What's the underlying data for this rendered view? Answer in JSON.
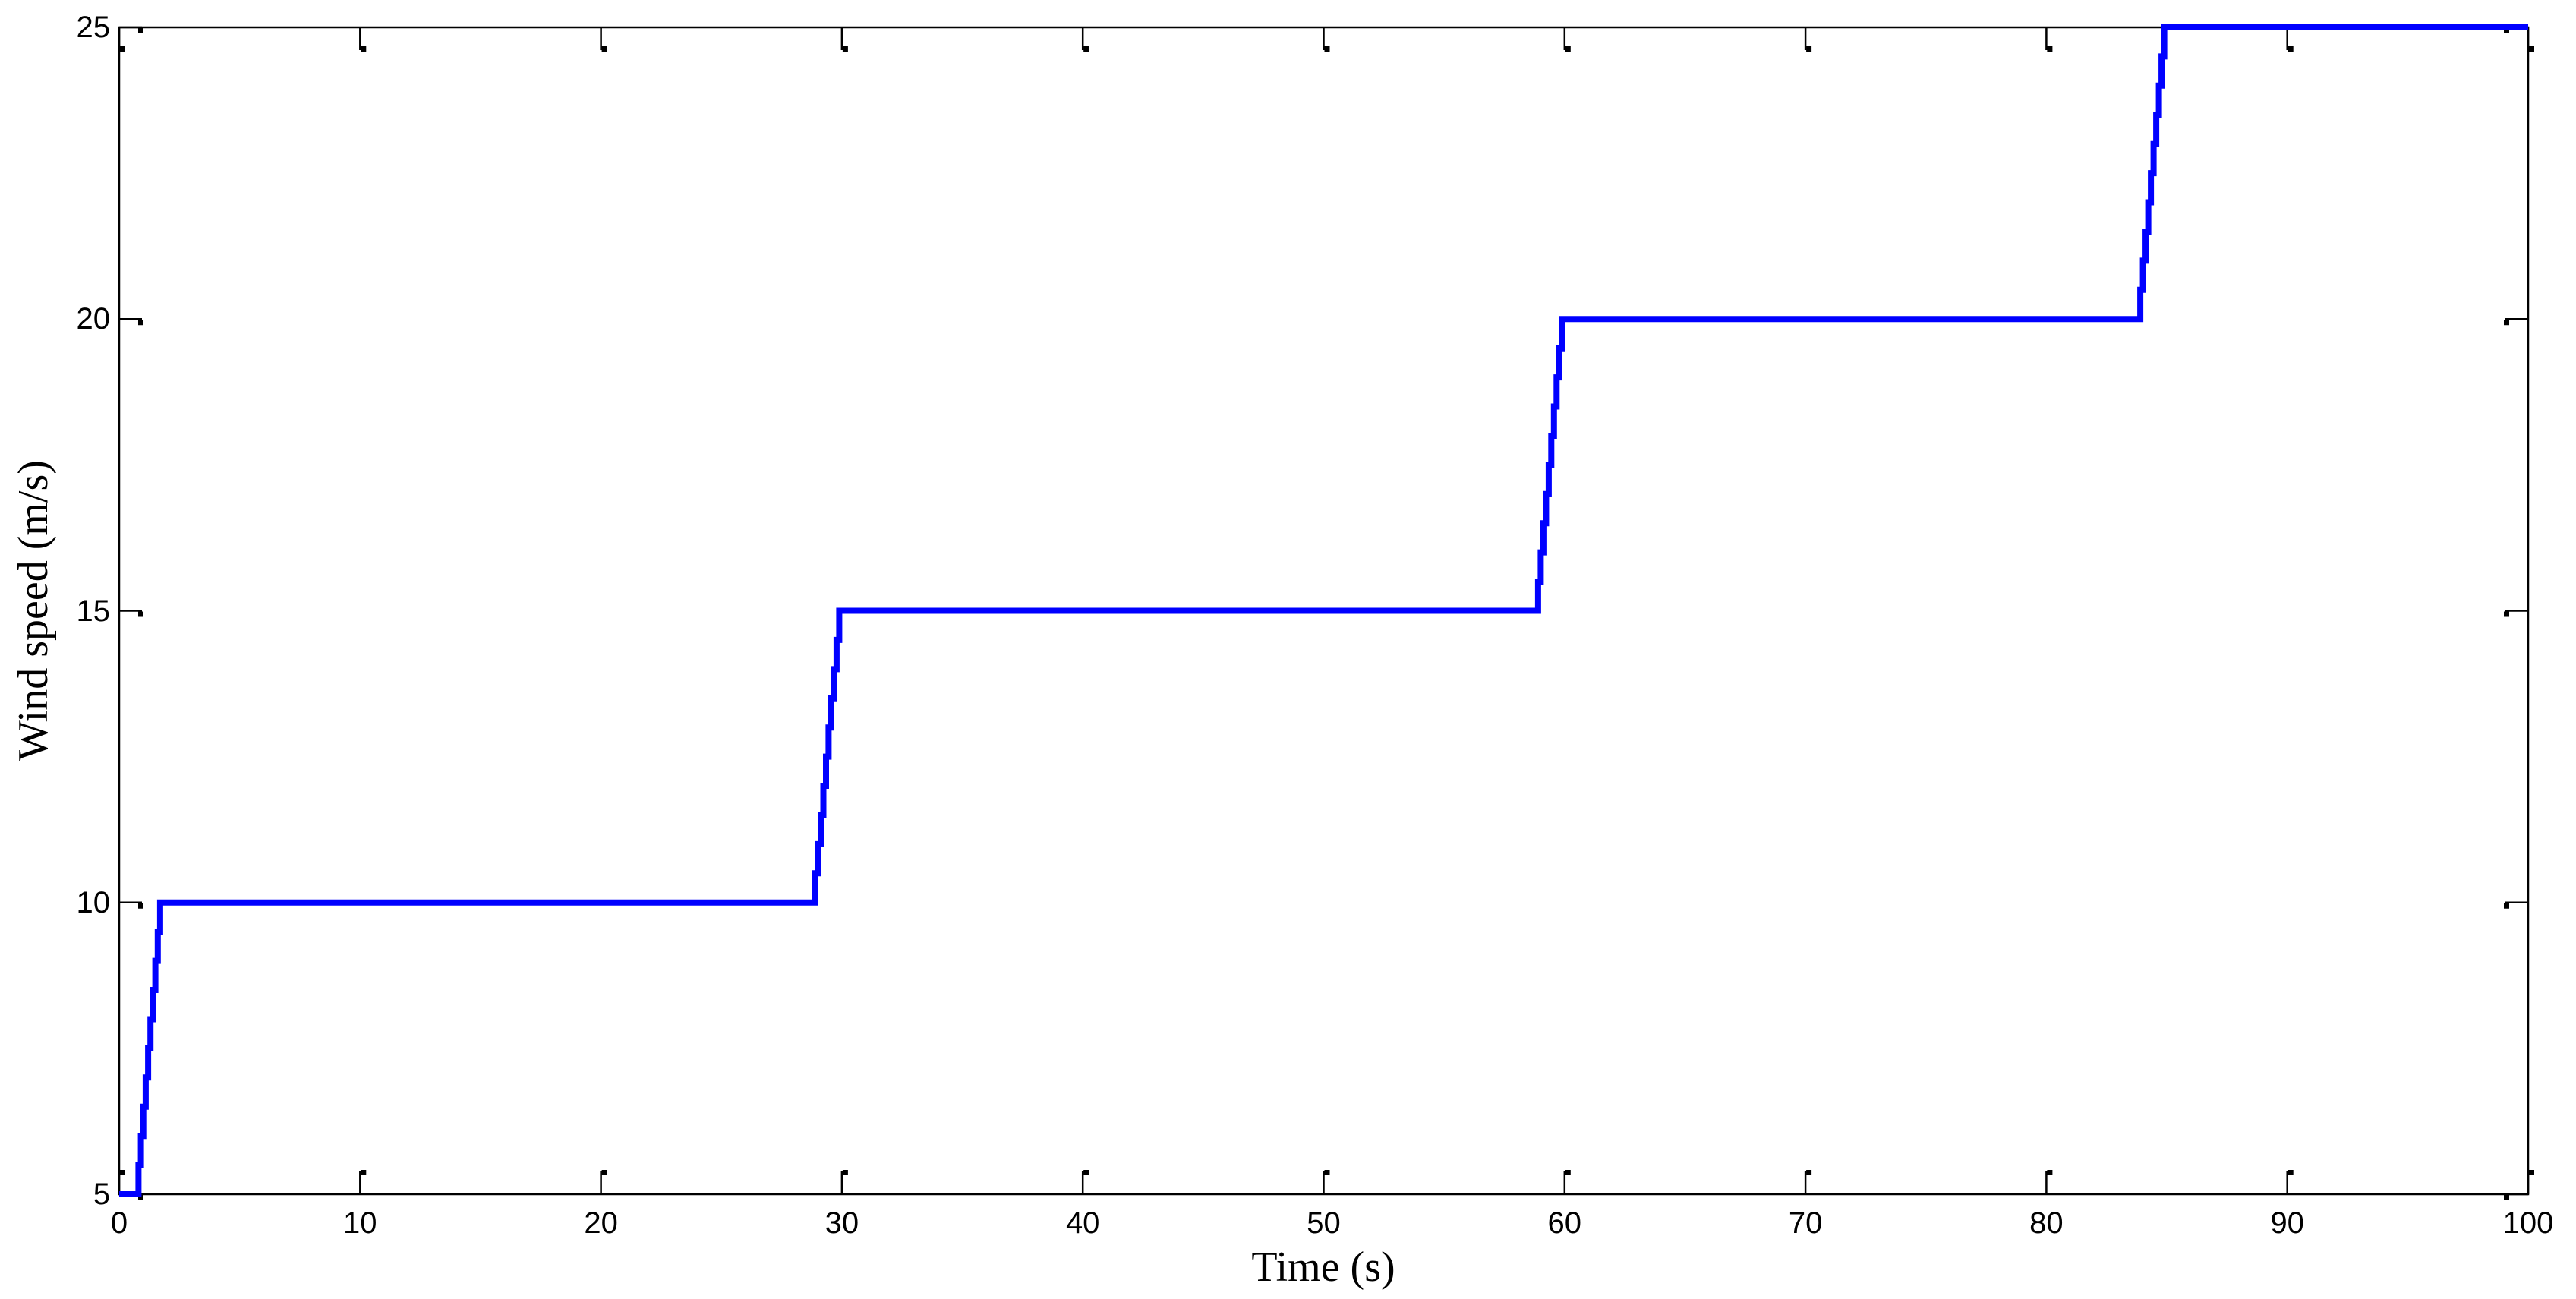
{
  "figure": {
    "background_color": "#ffffff",
    "axes_color": "#000000",
    "tick_label_color": "#000000"
  },
  "chart_data": {
    "type": "line",
    "subtype": "staircase-step",
    "title": "",
    "xlabel": "Time (s)",
    "ylabel": "Wind speed (m/s)",
    "xlim": [
      0,
      100
    ],
    "ylim": [
      5,
      25
    ],
    "x_ticks": [
      0,
      10,
      20,
      30,
      40,
      50,
      60,
      70,
      80,
      90,
      100
    ],
    "y_ticks": [
      5,
      10,
      15,
      20,
      25
    ],
    "grid": false,
    "legend": "none",
    "box": true,
    "series": [
      {
        "name": "wind speed",
        "color": "#0000ff",
        "line_width": 8,
        "points": [
          [
            0,
            5
          ],
          [
            0.8,
            5
          ],
          [
            1.8,
            10
          ],
          [
            28.9,
            10
          ],
          [
            30,
            15
          ],
          [
            58.9,
            15
          ],
          [
            60,
            20
          ],
          [
            83.9,
            20
          ],
          [
            85,
            25
          ],
          [
            100,
            25
          ]
        ],
        "ramp_quantization_step": 0.5
      }
    ],
    "step_levels": [
      5,
      10,
      15,
      20,
      25
    ]
  }
}
